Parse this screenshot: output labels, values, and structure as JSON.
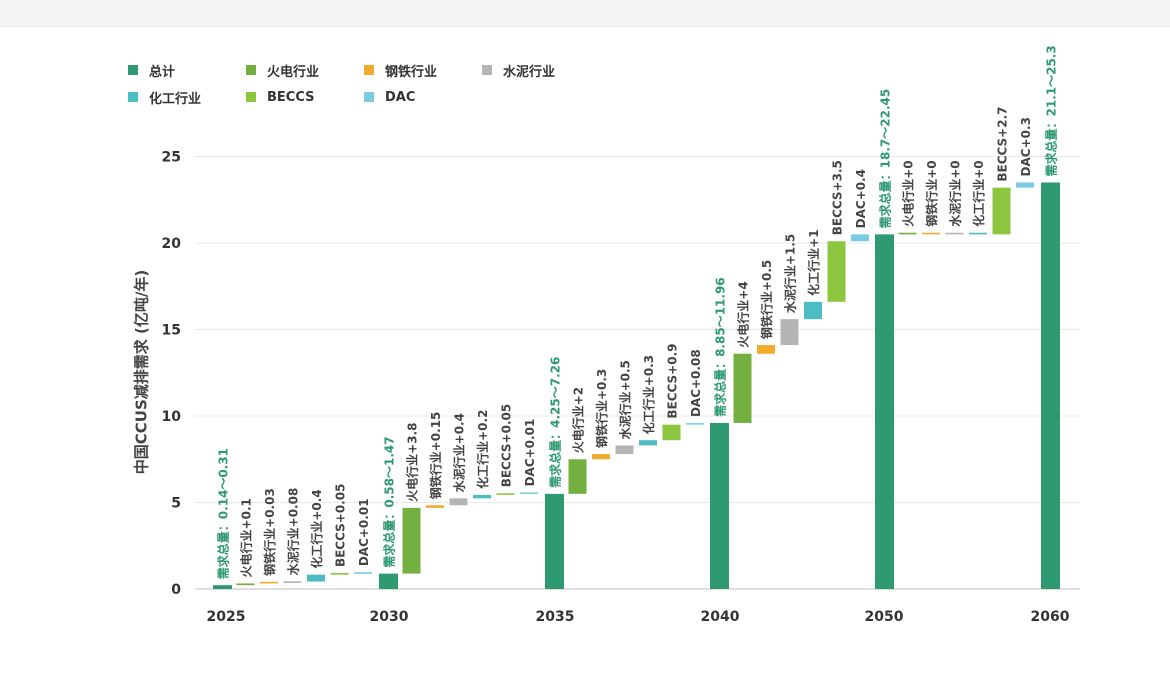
{
  "colors": {
    "total": "#2f9a72",
    "power": "#74b040",
    "steel": "#f0ab2a",
    "cement": "#b5b5b5",
    "chem": "#4dbdc4",
    "beccs": "#8cc63e",
    "dac": "#7ccbe6",
    "label_total": "#2f9a72",
    "label_default": "#444444",
    "grid": "#e8e8e8"
  },
  "legend": [
    {
      "name": "总计",
      "color_key": "total"
    },
    {
      "name": "火电行业",
      "color_key": "power"
    },
    {
      "name": "钢铁行业",
      "color_key": "steel"
    },
    {
      "name": "水泥行业",
      "color_key": "cement"
    },
    {
      "name": "化工行业",
      "color_key": "chem"
    },
    {
      "name": "BECCS",
      "color_key": "beccs"
    },
    {
      "name": "DAC",
      "color_key": "dac"
    }
  ],
  "chart_data": {
    "type": "bar",
    "subtype": "waterfall",
    "ylabel": "中国CCUS减排需求 (亿吨/年)",
    "ylim": [
      0,
      27
    ],
    "yticks": [
      "0",
      "5",
      "10",
      "15",
      "20",
      "25"
    ],
    "xticks": [
      "2025",
      "2030",
      "2035",
      "2040",
      "2050",
      "2060"
    ],
    "grid": "horizontal",
    "legend_position": "top-left",
    "bars": [
      {
        "group": "2025",
        "kind": "total",
        "base": 0,
        "value": 0.22,
        "label": "需求总量：0.14～0.31"
      },
      {
        "group": "2025",
        "kind": "power",
        "base": 0.22,
        "value": 0.1,
        "label": "火电行业+0.1"
      },
      {
        "group": "2025",
        "kind": "steel",
        "base": 0.32,
        "value": 0.03,
        "label": "钢铁行业+0.03"
      },
      {
        "group": "2025",
        "kind": "cement",
        "base": 0.35,
        "value": 0.08,
        "label": "水泥行业+0.08"
      },
      {
        "group": "2025",
        "kind": "chem",
        "base": 0.43,
        "value": 0.4,
        "label": "化工行业+0.4"
      },
      {
        "group": "2025",
        "kind": "beccs",
        "base": 0.83,
        "value": 0.05,
        "label": "BECCS+0.05"
      },
      {
        "group": "2025",
        "kind": "dac",
        "base": 0.88,
        "value": 0.01,
        "label": "DAC+0.01"
      },
      {
        "group": "2030",
        "kind": "total",
        "base": 0,
        "value": 0.89,
        "label": "需求总量：0.58～1.47"
      },
      {
        "group": "2030",
        "kind": "power",
        "base": 0.89,
        "value": 3.8,
        "label": "火电行业+3.8"
      },
      {
        "group": "2030",
        "kind": "steel",
        "base": 4.69,
        "value": 0.15,
        "label": "钢铁行业+0.15"
      },
      {
        "group": "2030",
        "kind": "cement",
        "base": 4.84,
        "value": 0.4,
        "label": "水泥行业+0.4"
      },
      {
        "group": "2030",
        "kind": "chem",
        "base": 5.24,
        "value": 0.2,
        "label": "化工行业+0.2"
      },
      {
        "group": "2030",
        "kind": "beccs",
        "base": 5.44,
        "value": 0.05,
        "label": "BECCS+0.05"
      },
      {
        "group": "2030",
        "kind": "dac",
        "base": 5.49,
        "value": 0.01,
        "label": "DAC+0.01"
      },
      {
        "group": "2035",
        "kind": "total",
        "base": 0,
        "value": 5.5,
        "label": "需求总量：4.25～7.26"
      },
      {
        "group": "2035",
        "kind": "power",
        "base": 5.5,
        "value": 2,
        "label": "火电行业+2"
      },
      {
        "group": "2035",
        "kind": "steel",
        "base": 7.5,
        "value": 0.3,
        "label": "钢铁行业+0.3"
      },
      {
        "group": "2035",
        "kind": "cement",
        "base": 7.8,
        "value": 0.5,
        "label": "水泥行业+0.5"
      },
      {
        "group": "2035",
        "kind": "chem",
        "base": 8.3,
        "value": 0.3,
        "label": "化工行业+0.3"
      },
      {
        "group": "2035",
        "kind": "beccs",
        "base": 8.6,
        "value": 0.9,
        "label": "BECCS+0.9"
      },
      {
        "group": "2035",
        "kind": "dac",
        "base": 9.5,
        "value": 0.08,
        "label": "DAC+0.08"
      },
      {
        "group": "2040",
        "kind": "total",
        "base": 0,
        "value": 9.6,
        "label": "需求总量：8.85～11.96"
      },
      {
        "group": "2040",
        "kind": "power",
        "base": 9.6,
        "value": 4,
        "label": "火电行业+4"
      },
      {
        "group": "2040",
        "kind": "steel",
        "base": 13.6,
        "value": 0.5,
        "label": "钢铁行业+0.5"
      },
      {
        "group": "2040",
        "kind": "cement",
        "base": 14.1,
        "value": 1.5,
        "label": "水泥行业+1.5"
      },
      {
        "group": "2040",
        "kind": "chem",
        "base": 15.6,
        "value": 1,
        "label": "化工行业+1"
      },
      {
        "group": "2040",
        "kind": "beccs",
        "base": 16.6,
        "value": 3.5,
        "label": "BECCS+3.5"
      },
      {
        "group": "2040",
        "kind": "dac",
        "base": 20.1,
        "value": 0.4,
        "label": "DAC+0.4"
      },
      {
        "group": "2050",
        "kind": "total",
        "base": 0,
        "value": 20.5,
        "label": "需求总量：18.7～22.45"
      },
      {
        "group": "2050",
        "kind": "power",
        "base": 20.5,
        "value": 0,
        "label": "火电行业+0"
      },
      {
        "group": "2050",
        "kind": "steel",
        "base": 20.5,
        "value": 0,
        "label": "钢铁行业+0"
      },
      {
        "group": "2050",
        "kind": "cement",
        "base": 20.5,
        "value": 0,
        "label": "水泥行业+0"
      },
      {
        "group": "2050",
        "kind": "chem",
        "base": 20.5,
        "value": 0,
        "label": "化工行业+0"
      },
      {
        "group": "2050",
        "kind": "beccs",
        "base": 20.5,
        "value": 2.7,
        "label": "BECCS+2.7"
      },
      {
        "group": "2050",
        "kind": "dac",
        "base": 23.2,
        "value": 0.3,
        "label": "DAC+0.3"
      },
      {
        "group": "2060",
        "kind": "total",
        "base": 0,
        "value": 23.5,
        "label": "需求总量：21.1～25.3"
      }
    ]
  }
}
